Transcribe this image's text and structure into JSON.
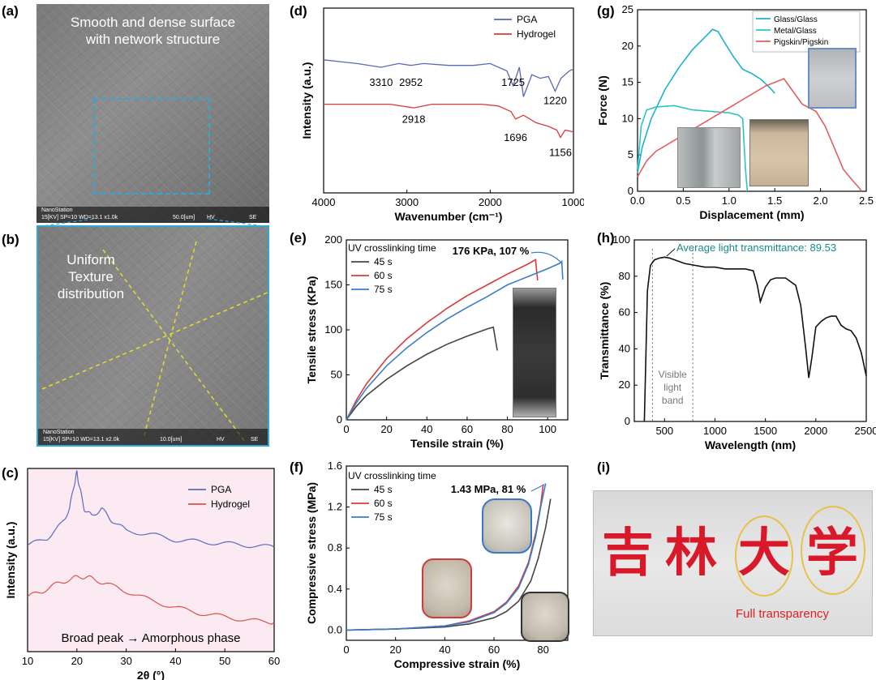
{
  "panels": {
    "a": {
      "label": "(a)",
      "text_line1": "Smooth and dense surface",
      "text_line2": "with network structure",
      "bar_brand": "NanoStation",
      "bar_params": "15[KV]  SP=10   WD=13.1   x1.0k",
      "bar_scale": "50.0[um]",
      "bar_hv": "HV",
      "bar_se": "SE"
    },
    "b": {
      "label": "(b)",
      "text_line1": "Uniform",
      "text_line2": "Texture",
      "text_line3": "distribution",
      "bar_brand": "NanoStation",
      "bar_params": "15[KV]  SP=10   WD=13.1   x2.0k",
      "bar_scale": "10.0[um]",
      "bar_hv": "HV",
      "bar_se": "SE"
    },
    "c": {
      "label": "(c)"
    },
    "d": {
      "label": "(d)"
    },
    "e": {
      "label": "(e)"
    },
    "f": {
      "label": "(f)"
    },
    "g": {
      "label": "(g)"
    },
    "h": {
      "label": "(h)"
    },
    "i": {
      "label": "(i)",
      "chars": [
        "吉",
        "林",
        "大",
        "学"
      ],
      "caption": "Full transparency"
    }
  },
  "colors": {
    "blue": "#4a5aa8",
    "red": "#d93a3a",
    "black": "#444444",
    "cyan": "#1ab3cf",
    "teal": "#168c8c",
    "xrd_blue": "#5c6bc0",
    "xrd_red": "#d9534f"
  },
  "chart_data": [
    {
      "id": "c",
      "type": "line",
      "xlabel": "2θ (°)",
      "ylabel": "Intensity (a.u.)",
      "xlim": [
        10,
        60
      ],
      "xticks": [
        10,
        20,
        30,
        40,
        50,
        60
      ],
      "annotation": "Broad peak → Amorphous phase",
      "series": [
        {
          "name": "PGA",
          "x": [
            10,
            14,
            17,
            18.5,
            19.5,
            20,
            20.5,
            21.5,
            23,
            25,
            27,
            30,
            35,
            40,
            45,
            50,
            55,
            60
          ],
          "y": [
            0.58,
            0.62,
            0.7,
            0.78,
            0.92,
            0.98,
            0.9,
            0.78,
            0.74,
            0.78,
            0.72,
            0.66,
            0.64,
            0.61,
            0.6,
            0.59,
            0.58,
            0.57
          ]
        },
        {
          "name": "Hydrogel",
          "x": [
            10,
            13,
            16,
            19,
            21,
            23,
            26,
            30,
            35,
            40,
            45,
            50,
            55,
            60
          ],
          "y": [
            0.3,
            0.33,
            0.37,
            0.4,
            0.41,
            0.4,
            0.37,
            0.33,
            0.28,
            0.24,
            0.21,
            0.19,
            0.17,
            0.16
          ]
        }
      ]
    },
    {
      "id": "d",
      "type": "line",
      "xlabel": "Wavenumber (cm⁻¹)",
      "ylabel": "Intensity (a.u.)",
      "xlim": [
        4000,
        1000
      ],
      "xticks": [
        4000,
        3000,
        2000,
        1000
      ],
      "peak_labels": [
        {
          "text": "3310",
          "x": 3310,
          "y": 0.58
        },
        {
          "text": "2952",
          "x": 2952,
          "y": 0.58
        },
        {
          "text": "1725",
          "x": 1725,
          "y": 0.58
        },
        {
          "text": "1220",
          "x": 1220,
          "y": 0.48
        },
        {
          "text": "2918",
          "x": 2918,
          "y": 0.38
        },
        {
          "text": "1696",
          "x": 1696,
          "y": 0.28
        },
        {
          "text": "1156",
          "x": 1156,
          "y": 0.2
        }
      ],
      "series": [
        {
          "name": "PGA",
          "x": [
            4000,
            3800,
            3600,
            3310,
            3100,
            2952,
            2800,
            2500,
            2200,
            2000,
            1800,
            1725,
            1650,
            1600,
            1500,
            1400,
            1300,
            1220,
            1150,
            1050,
            1000
          ],
          "y": [
            0.72,
            0.71,
            0.7,
            0.68,
            0.7,
            0.69,
            0.7,
            0.69,
            0.69,
            0.7,
            0.66,
            0.58,
            0.68,
            0.52,
            0.64,
            0.62,
            0.63,
            0.55,
            0.62,
            0.66,
            0.67
          ]
        },
        {
          "name": "Hydrogel",
          "x": [
            4000,
            3600,
            3200,
            2918,
            2700,
            2400,
            2100,
            1900,
            1750,
            1696,
            1600,
            1450,
            1300,
            1200,
            1156,
            1100,
            1000
          ],
          "y": [
            0.48,
            0.48,
            0.48,
            0.46,
            0.48,
            0.48,
            0.48,
            0.47,
            0.44,
            0.4,
            0.42,
            0.38,
            0.36,
            0.34,
            0.3,
            0.34,
            0.33
          ]
        }
      ]
    },
    {
      "id": "e",
      "type": "line",
      "xlabel": "Tensile strain (%)",
      "ylabel": "Tensile stress (KPa)",
      "xlim": [
        0,
        110
      ],
      "ylim": [
        0,
        200
      ],
      "xticks": [
        0,
        20,
        40,
        60,
        80,
        100
      ],
      "yticks": [
        0,
        50,
        100,
        150,
        200
      ],
      "legend_title": "UV crosslinking time",
      "annotation": "176 KPa, 107 %",
      "series": [
        {
          "name": "45 s",
          "x": [
            0,
            5,
            10,
            20,
            30,
            40,
            50,
            60,
            70,
            73,
            75
          ],
          "y": [
            0,
            15,
            27,
            45,
            60,
            73,
            84,
            93,
            101,
            103,
            77
          ]
        },
        {
          "name": "60 s",
          "x": [
            0,
            5,
            10,
            20,
            30,
            40,
            47,
            50,
            60,
            70,
            80,
            90,
            94,
            95
          ],
          "y": [
            0,
            22,
            40,
            68,
            90,
            108,
            119,
            124,
            138,
            150,
            162,
            173,
            178,
            155
          ]
        },
        {
          "name": "75 s",
          "x": [
            0,
            5,
            10,
            20,
            30,
            40,
            50,
            60,
            70,
            80,
            90,
            100,
            106,
            107,
            107.5
          ],
          "y": [
            0,
            19,
            35,
            60,
            80,
            97,
            112,
            125,
            137,
            150,
            159,
            168,
            174,
            176,
            156
          ]
        }
      ]
    },
    {
      "id": "f",
      "type": "line",
      "xlabel": "Compressive strain (%)",
      "ylabel": "Compressive stress (MPa)",
      "xlim": [
        0,
        90
      ],
      "ylim": [
        -0.1,
        1.6
      ],
      "xticks": [
        0,
        20,
        40,
        60,
        80
      ],
      "yticks": [
        0.0,
        0.4,
        0.8,
        1.2,
        1.6
      ],
      "legend_title": "UV crosslinking time",
      "annotation": "1.43 MPa, 81 %",
      "series": [
        {
          "name": "45 s",
          "x": [
            0,
            20,
            40,
            50,
            60,
            65,
            70,
            75,
            78,
            81,
            83
          ],
          "y": [
            0,
            0.01,
            0.03,
            0.06,
            0.12,
            0.18,
            0.28,
            0.48,
            0.7,
            1.0,
            1.28
          ]
        },
        {
          "name": "60 s",
          "x": [
            0,
            20,
            40,
            50,
            60,
            65,
            70,
            74,
            77,
            79,
            80
          ],
          "y": [
            0,
            0.01,
            0.04,
            0.09,
            0.18,
            0.27,
            0.43,
            0.66,
            0.95,
            1.22,
            1.42
          ]
        },
        {
          "name": "75 s",
          "x": [
            0,
            20,
            40,
            50,
            60,
            65,
            70,
            74,
            77,
            79,
            81
          ],
          "y": [
            0,
            0.01,
            0.04,
            0.08,
            0.17,
            0.26,
            0.41,
            0.64,
            0.92,
            1.2,
            1.43
          ]
        }
      ]
    },
    {
      "id": "g",
      "type": "line",
      "xlabel": "Displacement (mm)",
      "ylabel": "Force (N)",
      "xlim": [
        0,
        2.5
      ],
      "ylim": [
        0,
        25
      ],
      "xticks": [
        0.0,
        0.5,
        1.0,
        1.5,
        2.0,
        2.5
      ],
      "yticks": [
        0,
        5,
        10,
        15,
        20,
        25
      ],
      "series": [
        {
          "name": "Glass/Glass",
          "x": [
            0,
            0.05,
            0.15,
            0.3,
            0.45,
            0.6,
            0.72,
            0.82,
            0.88,
            0.95,
            1.05,
            1.15,
            1.25,
            1.35,
            1.45,
            1.5
          ],
          "y": [
            2.5,
            6,
            10,
            14,
            17,
            19.5,
            21,
            22.3,
            22,
            20.5,
            18.5,
            16.8,
            16.2,
            15.4,
            14.2,
            13.5
          ]
        },
        {
          "name": "Metal/Glass",
          "x": [
            0,
            0.04,
            0.1,
            0.2,
            0.4,
            0.6,
            0.8,
            1.0,
            1.1,
            1.15,
            1.18,
            1.2
          ],
          "y": [
            3,
            9,
            11.2,
            11.6,
            11.8,
            11.2,
            11,
            10.8,
            10.5,
            10,
            3,
            0
          ]
        },
        {
          "name": "Pigskin/Pigskin",
          "x": [
            0,
            0.1,
            0.2,
            0.4,
            0.6,
            0.8,
            1.0,
            1.2,
            1.4,
            1.6,
            1.8,
            1.95,
            2.05,
            2.15,
            2.25,
            2.35,
            2.42,
            2.45
          ],
          "y": [
            2,
            4.2,
            5.5,
            7,
            8.5,
            10,
            11.5,
            13,
            14.5,
            15.5,
            12,
            11,
            9,
            6,
            3,
            1.5,
            0.5,
            0
          ]
        }
      ]
    },
    {
      "id": "h",
      "type": "line",
      "xlabel": "Wavelength (nm)",
      "ylabel": "Transmittance (%)",
      "xlim": [
        200,
        2500
      ],
      "ylim": [
        0,
        100
      ],
      "xticks": [
        500,
        1000,
        1500,
        2000,
        2500
      ],
      "yticks": [
        0,
        20,
        40,
        60,
        80,
        100
      ],
      "annotation": "Average light transmittance: 89.53",
      "band_label": [
        "Visible",
        "light",
        "band"
      ],
      "series": [
        {
          "name": "",
          "x": [
            300,
            330,
            360,
            400,
            450,
            500,
            550,
            600,
            700,
            800,
            900,
            1000,
            1100,
            1200,
            1300,
            1380,
            1420,
            1450,
            1500,
            1550,
            1600,
            1700,
            1750,
            1800,
            1850,
            1900,
            1930,
            1960,
            2000,
            2050,
            2100,
            2150,
            2200,
            2250,
            2300,
            2350,
            2400,
            2450,
            2500
          ],
          "y": [
            0,
            72,
            86,
            89,
            90,
            90.5,
            90,
            89,
            87,
            86,
            85,
            85,
            84,
            84,
            84,
            83,
            75,
            66,
            74,
            78,
            79,
            79,
            77,
            75,
            64,
            40,
            24,
            35,
            52,
            55,
            57,
            58,
            58,
            53,
            51,
            50,
            46,
            38,
            25
          ]
        }
      ]
    }
  ]
}
